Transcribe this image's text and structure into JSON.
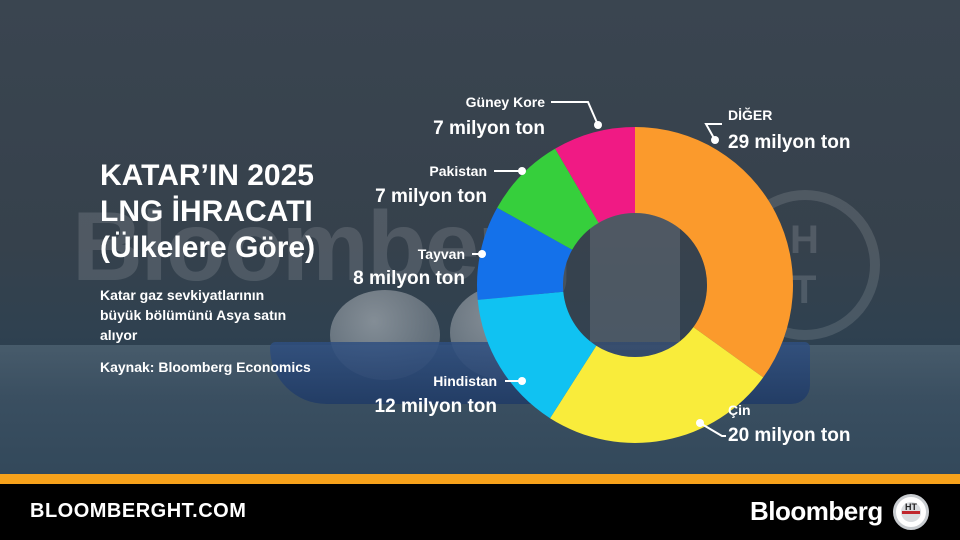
{
  "header": {
    "title_lines": [
      "KATAR’IN 2025",
      "LNG İHRACATI",
      "(Ülkelere Göre)"
    ],
    "subtitle": "Katar gaz sevkiyatlarının büyük bölümünü Asya satın alıyor",
    "source": "Kaynak: Bloomberg Economics"
  },
  "background": {
    "watermark_text": "Bloomberg",
    "watermark_logo_letters": [
      "H",
      "T"
    ]
  },
  "footer": {
    "url": "BLOOMBERGHT.COM",
    "brand": "Bloomberg",
    "logo_letters": "HT"
  },
  "colors": {
    "accent_orange": "#f7a21b",
    "footer_bg": "#000000"
  },
  "chart_data": {
    "type": "pie",
    "donut": true,
    "unit": "milyon ton",
    "title": "KATAR’IN 2025 LNG İHRACATI (Ülkelere Göre)",
    "slices": [
      {
        "name": "DİĞER",
        "value": 29,
        "label": "29 milyon ton",
        "color": "#fb9a2c"
      },
      {
        "name": "Çin",
        "value": 20,
        "label": "20 milyon ton",
        "color": "#f9ec3b"
      },
      {
        "name": "Hindistan",
        "value": 12,
        "label": "12 milyon ton",
        "color": "#10c2f2"
      },
      {
        "name": "Tayvan",
        "value": 8,
        "label": "8 milyon ton",
        "color": "#1471ea"
      },
      {
        "name": "Pakistan",
        "value": 7,
        "label": "7 milyon ton",
        "color": "#36cf3c"
      },
      {
        "name": "Güney Kore",
        "value": 7,
        "label": "7 milyon ton",
        "color": "#f01a84"
      }
    ]
  }
}
